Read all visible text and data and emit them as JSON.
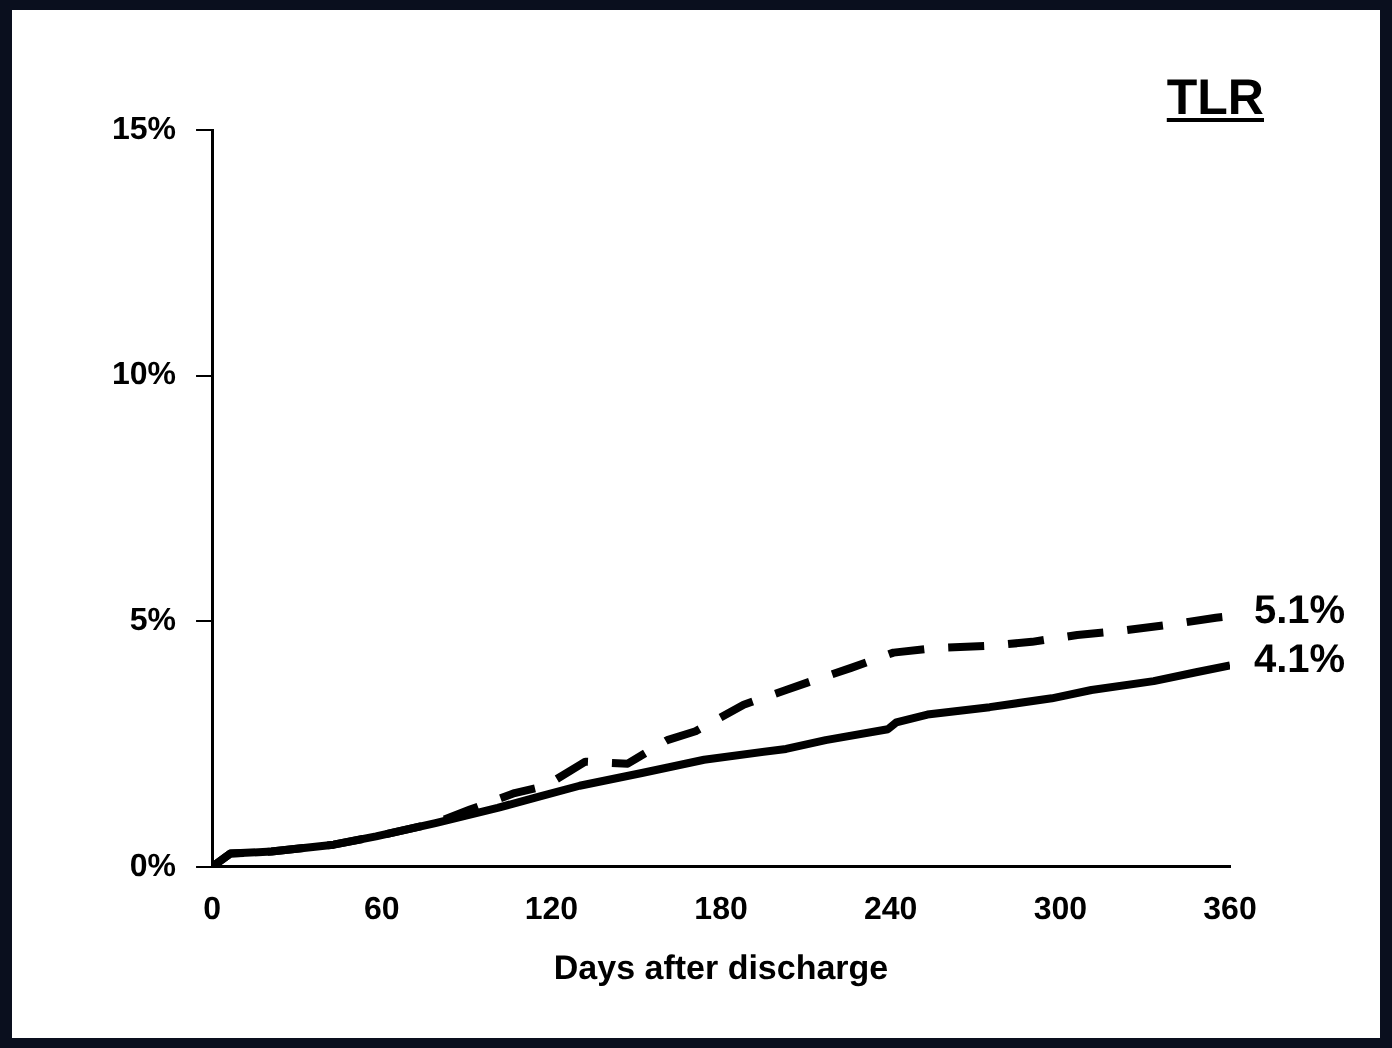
{
  "chart_data": {
    "type": "line",
    "title": "TLR",
    "xlabel": "Days after discharge",
    "xlim": [
      0,
      360
    ],
    "xticks": [
      0,
      60,
      120,
      180,
      240,
      300,
      360
    ],
    "ylim": [
      0,
      15
    ],
    "yticks": [
      {
        "value": 0,
        "label": "0%"
      },
      {
        "value": 5,
        "label": "5%"
      },
      {
        "value": 10,
        "label": "10%"
      },
      {
        "value": 15,
        "label": "15%"
      }
    ],
    "grid": false,
    "legend": false,
    "marker": "none",
    "series": [
      {
        "color": "#000000",
        "line_style": "dashed",
        "x": [
          0,
          6.5,
          21,
          43,
          58,
          79,
          91,
          107,
          118,
          132,
          147,
          161,
          171,
          188,
          203,
          212,
          226,
          241,
          255,
          275,
          290,
          306,
          321,
          340,
          355,
          360
        ],
        "values": [
          0,
          0.27,
          0.31,
          0.45,
          0.62,
          0.89,
          1.16,
          1.5,
          1.65,
          2.14,
          2.1,
          2.58,
          2.76,
          3.3,
          3.6,
          3.78,
          4.05,
          4.36,
          4.45,
          4.5,
          4.58,
          4.72,
          4.8,
          4.94,
          5.07,
          5.1
        ]
      },
      {
        "color": "#000000",
        "line_style": "solid",
        "x": [
          0,
          6.5,
          21,
          43,
          58,
          79,
          101,
          115,
          130,
          152,
          174,
          203,
          217,
          239,
          242,
          253,
          275,
          297,
          311,
          333,
          348,
          360
        ],
        "values": [
          0,
          0.27,
          0.31,
          0.45,
          0.62,
          0.89,
          1.2,
          1.42,
          1.65,
          1.91,
          2.18,
          2.4,
          2.58,
          2.8,
          2.94,
          3.1,
          3.25,
          3.43,
          3.6,
          3.78,
          3.96,
          4.1
        ]
      }
    ],
    "annotations": [
      {
        "text": "5.1%",
        "x": 360,
        "y": 5.1
      },
      {
        "text": "4.1%",
        "x": 360,
        "y": 4.1
      }
    ]
  }
}
